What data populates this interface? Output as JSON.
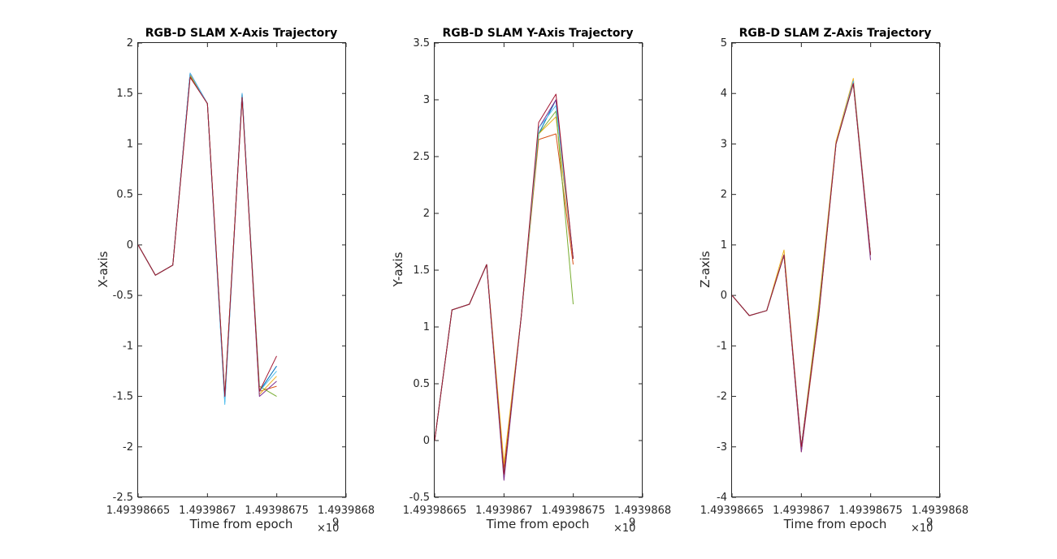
{
  "chart_data": [
    {
      "type": "line",
      "title": "RGB-D SLAM X-Axis Trajectory",
      "xlabel": "Time from epoch",
      "ylabel": "X-axis",
      "xlim": [
        1.49398665,
        1.4939868
      ],
      "ylim": [
        -2.5,
        2
      ],
      "x_scale_factor": "×10",
      "x_scale_exponent": "9",
      "xtick_labels": [
        "1.49398665",
        "1.4939867",
        "1.49398675",
        "1.4939868"
      ],
      "ytick_labels": [
        "-2.5",
        "-2",
        "-1.5",
        "-1",
        "-0.5",
        "0",
        "0.5",
        "1",
        "1.5",
        "2"
      ],
      "grid": false,
      "x": [
        1.49398665,
        1.4939866625,
        1.493986675,
        1.4939866875,
        1.4939867,
        1.4939867125,
        1.493986725,
        1.4939867375,
        1.4939867499
      ],
      "series": [
        {
          "values": [
            0.0,
            -0.3,
            -0.2,
            1.7,
            1.4,
            -1.55,
            1.5,
            -1.45,
            -1.2
          ],
          "color": "#0072BD"
        },
        {
          "values": [
            0.0,
            -0.3,
            -0.2,
            1.68,
            1.4,
            -1.5,
            1.48,
            -1.45,
            -1.4
          ],
          "color": "#D95319"
        },
        {
          "values": [
            0.0,
            -0.3,
            -0.2,
            1.69,
            1.4,
            -1.52,
            1.49,
            -1.48,
            -1.3
          ],
          "color": "#EDB120"
        },
        {
          "values": [
            0.0,
            -0.3,
            -0.2,
            1.7,
            1.4,
            -1.55,
            1.5,
            -1.5,
            -1.35
          ],
          "color": "#7E2F8E"
        },
        {
          "values": [
            0.0,
            -0.3,
            -0.2,
            1.67,
            1.4,
            -1.5,
            1.47,
            -1.4,
            -1.5
          ],
          "color": "#77AC30"
        },
        {
          "values": [
            0.0,
            -0.3,
            -0.2,
            1.7,
            1.4,
            -1.58,
            1.5,
            -1.45,
            -1.25
          ],
          "color": "#4DBEEE"
        },
        {
          "values": [
            0.0,
            -0.3,
            -0.2,
            1.66,
            1.4,
            -1.5,
            1.46,
            -1.45,
            -1.1
          ],
          "color": "#A2142F"
        }
      ]
    },
    {
      "type": "line",
      "title": "RGB-D SLAM Y-Axis Trajectory",
      "xlabel": "Time from epoch",
      "ylabel": "Y-axis",
      "xlim": [
        1.49398665,
        1.4939868
      ],
      "ylim": [
        -0.5,
        3.5
      ],
      "x_scale_factor": "×10",
      "x_scale_exponent": "9",
      "xtick_labels": [
        "1.49398665",
        "1.4939867",
        "1.49398675",
        "1.4939868"
      ],
      "ytick_labels": [
        "-0.5",
        "0",
        "0.5",
        "1",
        "1.5",
        "2",
        "2.5",
        "3",
        "3.5"
      ],
      "grid": false,
      "x": [
        1.49398665,
        1.4939866625,
        1.493986675,
        1.4939866875,
        1.4939867,
        1.4939867125,
        1.493986725,
        1.4939867375,
        1.4939867499
      ],
      "series": [
        {
          "values": [
            0.0,
            1.15,
            1.2,
            1.55,
            -0.3,
            1.1,
            2.7,
            3.0,
            1.6
          ],
          "color": "#0072BD"
        },
        {
          "values": [
            0.0,
            1.15,
            1.2,
            1.55,
            -0.25,
            1.1,
            2.65,
            2.7,
            1.55
          ],
          "color": "#D95319"
        },
        {
          "values": [
            0.0,
            1.15,
            1.2,
            1.55,
            -0.2,
            1.1,
            2.7,
            2.85,
            1.6
          ],
          "color": "#EDB120"
        },
        {
          "values": [
            0.0,
            1.15,
            1.2,
            1.55,
            -0.35,
            1.1,
            2.75,
            3.0,
            1.6
          ],
          "color": "#7E2F8E"
        },
        {
          "values": [
            0.0,
            1.15,
            1.2,
            1.55,
            -0.3,
            1.1,
            2.7,
            2.9,
            1.2
          ],
          "color": "#77AC30"
        },
        {
          "values": [
            0.0,
            1.15,
            1.2,
            1.55,
            -0.3,
            1.1,
            2.75,
            2.95,
            1.6
          ],
          "color": "#4DBEEE"
        },
        {
          "values": [
            0.0,
            1.15,
            1.2,
            1.55,
            -0.3,
            1.1,
            2.8,
            3.05,
            1.6
          ],
          "color": "#A2142F"
        }
      ]
    },
    {
      "type": "line",
      "title": "RGB-D SLAM Z-Axis Trajectory",
      "xlabel": "Time from epoch",
      "ylabel": "Z-axis",
      "xlim": [
        1.49398665,
        1.4939868
      ],
      "ylim": [
        -4,
        5
      ],
      "x_scale_factor": "×10",
      "x_scale_exponent": "9",
      "xtick_labels": [
        "1.49398665",
        "1.4939867",
        "1.49398675",
        "1.4939868"
      ],
      "ytick_labels": [
        "-4",
        "-3",
        "-2",
        "-1",
        "0",
        "1",
        "2",
        "3",
        "4",
        "5"
      ],
      "grid": false,
      "x": [
        1.49398665,
        1.4939866625,
        1.493986675,
        1.4939866875,
        1.4939867,
        1.4939867125,
        1.493986725,
        1.4939867375,
        1.4939867499
      ],
      "series": [
        {
          "values": [
            0.0,
            -0.4,
            -0.3,
            0.8,
            -3.0,
            -0.3,
            3.0,
            4.2,
            0.8
          ],
          "color": "#0072BD"
        },
        {
          "values": [
            0.0,
            -0.4,
            -0.3,
            0.8,
            -3.1,
            -0.4,
            3.0,
            4.25,
            0.8
          ],
          "color": "#D95319"
        },
        {
          "values": [
            0.0,
            -0.4,
            -0.3,
            0.9,
            -3.0,
            -0.2,
            3.05,
            4.3,
            0.8
          ],
          "color": "#EDB120"
        },
        {
          "values": [
            0.0,
            -0.4,
            -0.3,
            0.8,
            -3.1,
            -0.3,
            3.0,
            4.2,
            0.7
          ],
          "color": "#7E2F8E"
        },
        {
          "values": [
            0.0,
            -0.4,
            -0.3,
            0.8,
            -3.0,
            -0.3,
            3.0,
            4.2,
            0.8
          ],
          "color": "#77AC30"
        },
        {
          "values": [
            0.0,
            -0.4,
            -0.3,
            0.8,
            -3.0,
            -0.4,
            3.0,
            4.25,
            0.8
          ],
          "color": "#4DBEEE"
        },
        {
          "values": [
            0.0,
            -0.4,
            -0.3,
            0.8,
            -3.0,
            -0.4,
            3.0,
            4.2,
            0.8
          ],
          "color": "#A2142F"
        }
      ]
    }
  ]
}
